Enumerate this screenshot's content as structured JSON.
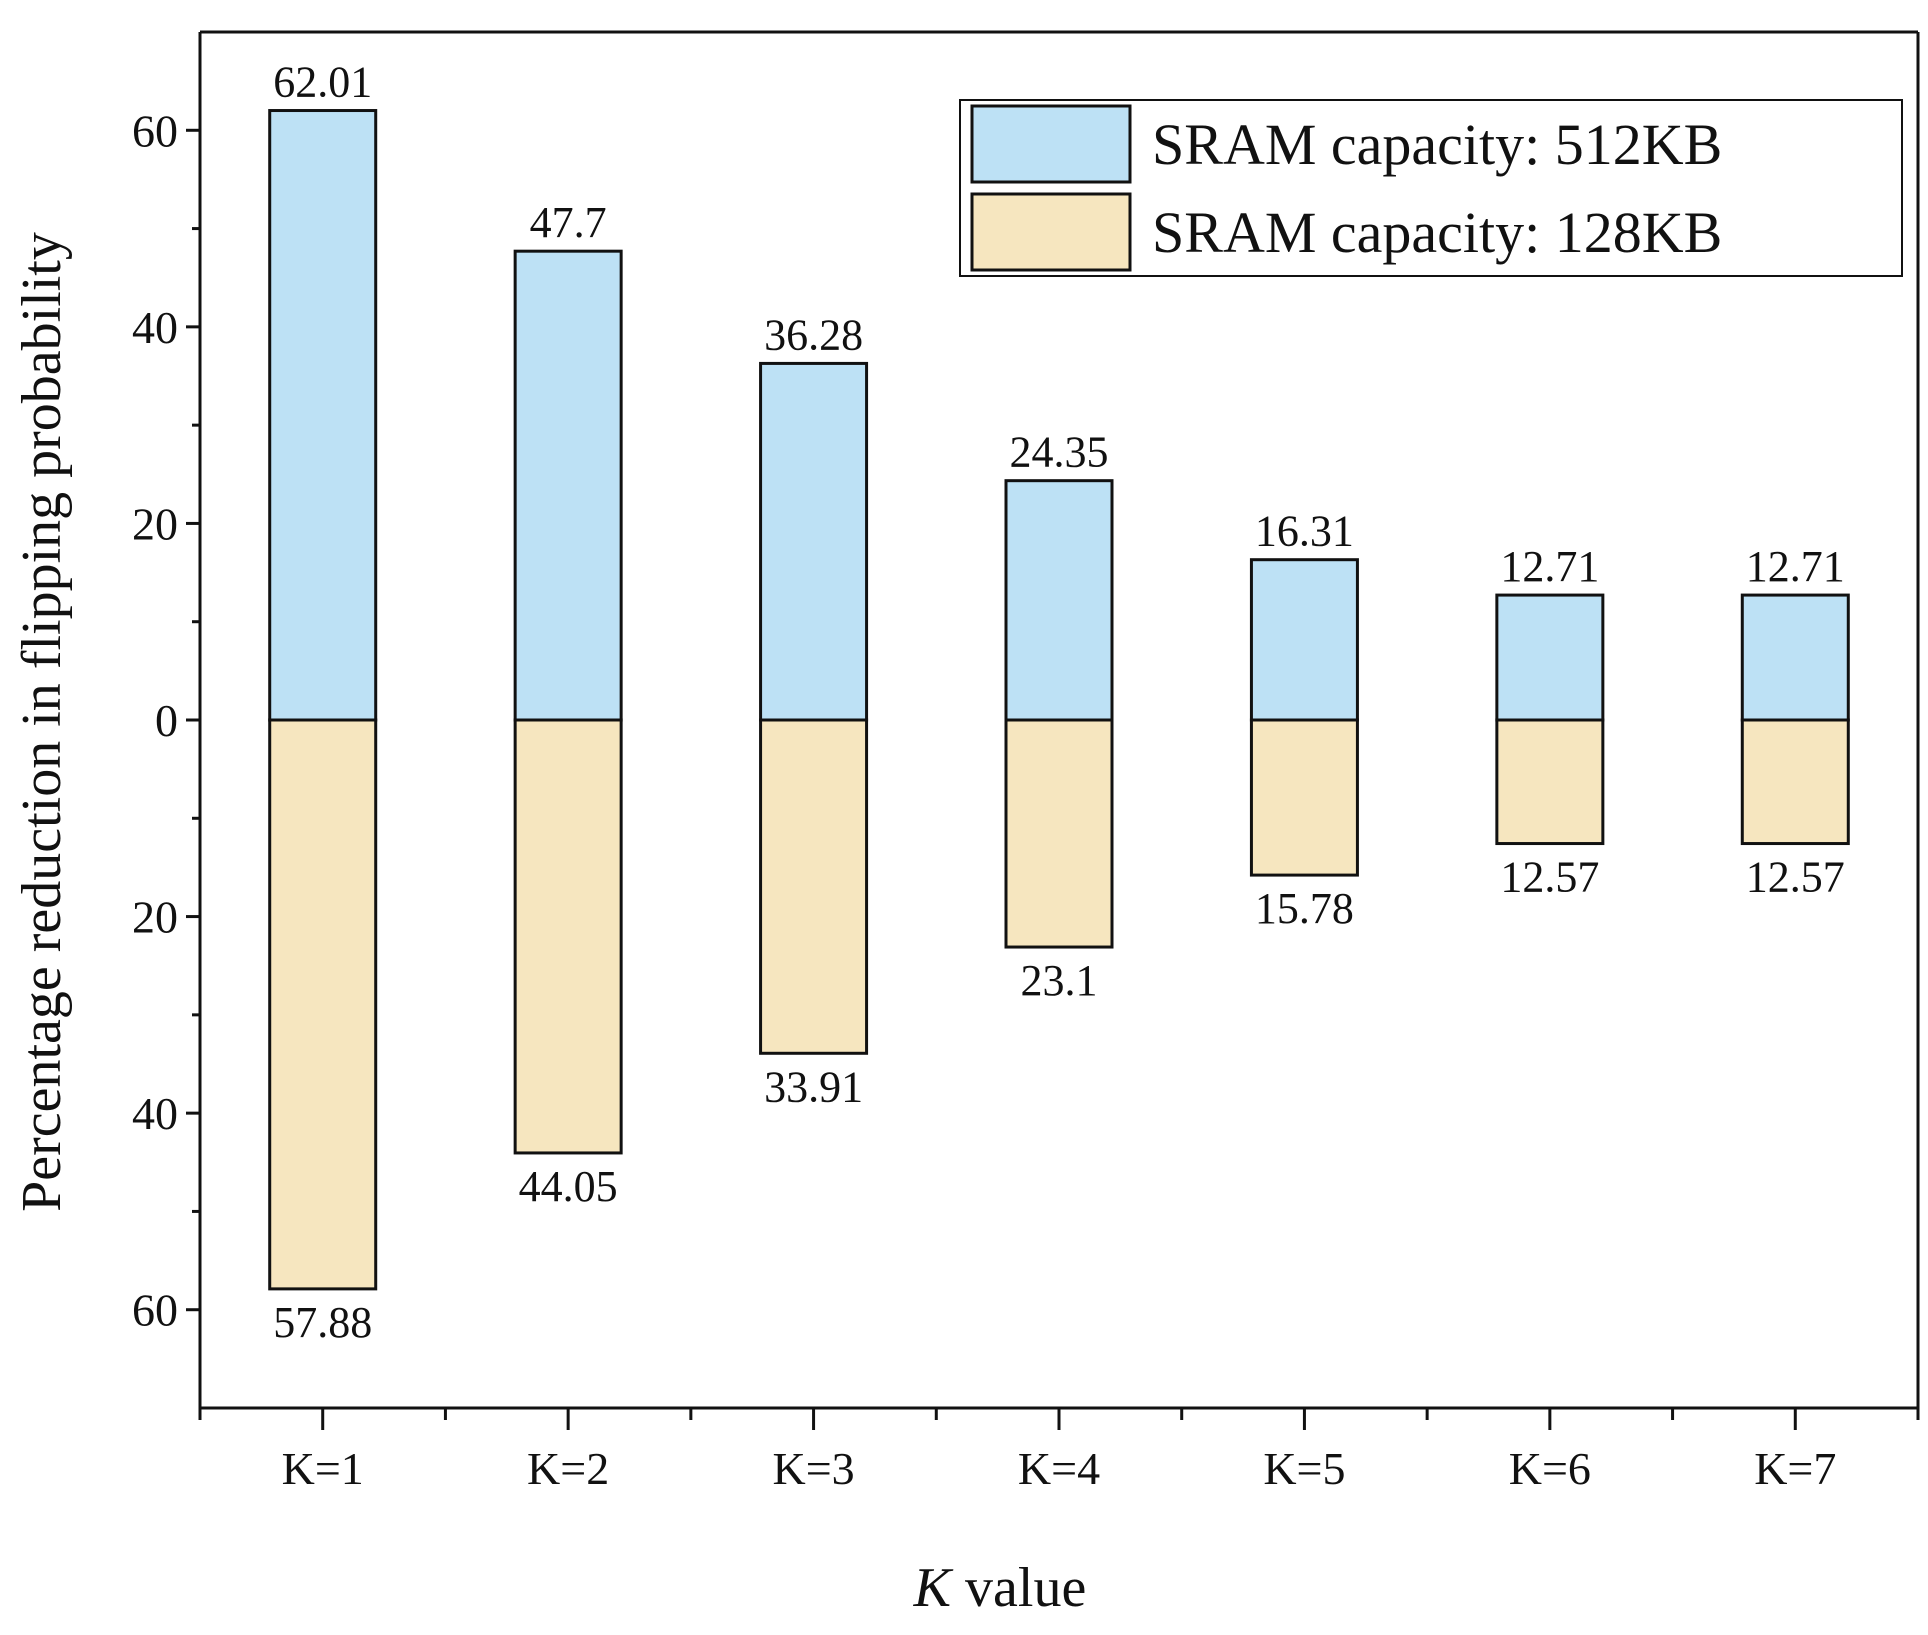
{
  "chart_data": {
    "type": "bar",
    "title": "",
    "xlabel": "K value",
    "xlabel_italic": "K",
    "xlabel_rest": " value",
    "ylabel": "Percentage reduction in flipping probability",
    "categories": [
      "K=1",
      "K=2",
      "K=3",
      "K=4",
      "K=5",
      "K=6",
      "K=7"
    ],
    "series": [
      {
        "name": "SRAM capacity: 512KB",
        "color": "#bde1f5",
        "direction": "up",
        "values": [
          62.01,
          47.7,
          36.28,
          24.35,
          16.31,
          12.71,
          12.71
        ],
        "labels": [
          "62.01",
          "47.7",
          "36.28",
          "24.35",
          "16.31",
          "12.71",
          "12.71"
        ]
      },
      {
        "name": "SRAM capacity: 128KB",
        "color": "#f6e6bf",
        "direction": "down",
        "values": [
          57.88,
          44.05,
          33.91,
          23.1,
          15.78,
          12.57,
          12.57
        ],
        "labels": [
          "57.88",
          "44.05",
          "33.91",
          "23.1",
          "15.78",
          "12.57",
          "12.57"
        ]
      }
    ],
    "ylim": [
      -70,
      70
    ],
    "yticks": [
      60,
      40,
      20,
      0,
      -20,
      -40,
      -60
    ],
    "ytick_labels": [
      "60",
      "40",
      "20",
      "0",
      "20",
      "40",
      "60"
    ],
    "grid": false,
    "legend_position": "top-right"
  }
}
